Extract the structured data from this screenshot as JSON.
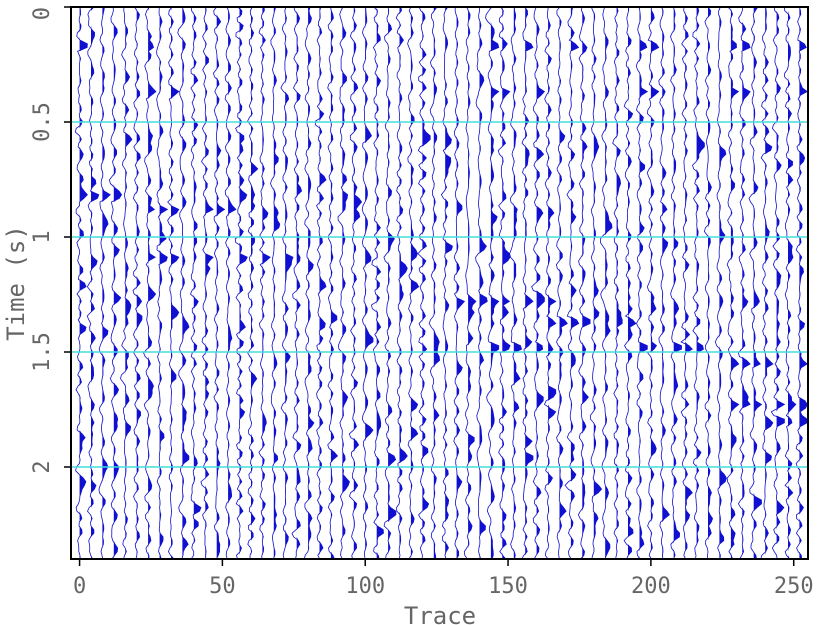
{
  "chart_data": {
    "type": "wiggle",
    "xlabel": "Trace",
    "ylabel": "Time (s)",
    "xlim": [
      -3,
      255
    ],
    "ylim": [
      0,
      2.4
    ],
    "x_ticks": [
      0,
      50,
      100,
      150,
      200,
      250
    ],
    "y_ticks": [
      0,
      0.5,
      1,
      1.5,
      2
    ],
    "x_tick_labels": [
      "0",
      "50",
      "100",
      "150",
      "200",
      "250"
    ],
    "y_tick_labels": [
      "0",
      "0.5",
      "1",
      "1.5",
      "2"
    ],
    "y_gridlines": [
      0.5,
      1,
      1.5,
      2
    ],
    "trace_spacing": 4,
    "trace_count": 64,
    "wiggle_color": "#1010d0",
    "grid_color": "#44dddd",
    "frame_color": "#000000",
    "events": [
      {
        "t": 0.17,
        "traces": [
          0,
          24,
          144,
          156,
          172,
          196,
          200,
          228,
          232,
          252
        ]
      },
      {
        "t": 0.37,
        "traces": [
          24,
          32,
          144,
          148,
          160,
          196,
          200,
          228,
          232,
          252
        ]
      },
      {
        "t": 0.82,
        "traces": [
          0,
          4,
          8,
          12
        ]
      },
      {
        "t": 0.88,
        "traces": [
          24,
          28,
          32,
          44,
          48,
          52
        ]
      },
      {
        "t": 1.09,
        "traces": [
          24,
          28,
          32,
          44,
          56,
          64,
          72
        ]
      },
      {
        "t": 1.28,
        "traces": [
          132,
          136,
          144,
          148,
          156,
          164
        ]
      },
      {
        "t": 1.37,
        "traces": [
          164,
          168,
          172,
          176,
          188,
          192
        ]
      },
      {
        "t": 1.48,
        "traces": [
          144,
          148,
          152,
          160,
          196,
          200,
          208,
          212,
          216
        ]
      },
      {
        "t": 1.55,
        "traces": [
          228,
          232,
          236,
          240,
          252
        ]
      },
      {
        "t": 1.73,
        "traces": [
          228,
          232,
          236,
          244,
          248,
          252
        ]
      },
      {
        "t": 1.8,
        "traces": [
          244,
          248,
          252
        ]
      }
    ]
  }
}
